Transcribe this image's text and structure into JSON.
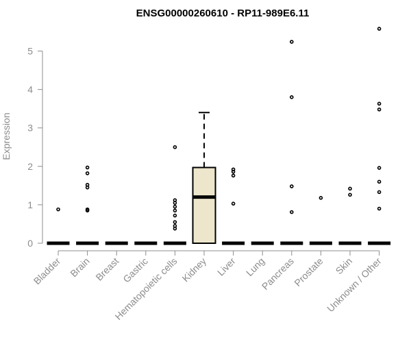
{
  "chart_data": {
    "type": "box",
    "title": "ENSG00000260610 - RP11-989E6.11",
    "xlabel": "",
    "ylabel": "Expression",
    "ylim": [
      0,
      5.6
    ],
    "yticks": [
      0,
      1,
      2,
      3,
      4,
      5
    ],
    "grid": false,
    "box_fill": "#ede6cc",
    "categories": [
      "Bladder",
      "Brain",
      "Breast",
      "Gastric",
      "Hematopoietic cells",
      "Kidney",
      "Liver",
      "Lung",
      "Pancreas",
      "Prostate",
      "Skin",
      "Unknown / Other"
    ],
    "boxes": [
      {
        "q1": 0,
        "median": 0,
        "q3": 0,
        "whisker_low": 0,
        "whisker_high": 0,
        "outliers": [
          0.88
        ]
      },
      {
        "q1": 0,
        "median": 0,
        "q3": 0,
        "whisker_low": 0,
        "whisker_high": 0,
        "outliers": [
          0.85,
          0.88,
          1.45,
          1.52,
          1.82,
          1.97
        ]
      },
      {
        "q1": 0,
        "median": 0,
        "q3": 0,
        "whisker_low": 0,
        "whisker_high": 0,
        "outliers": []
      },
      {
        "q1": 0,
        "median": 0,
        "q3": 0,
        "whisker_low": 0,
        "whisker_high": 0,
        "outliers": []
      },
      {
        "q1": 0,
        "median": 0,
        "q3": 0,
        "whisker_low": 0,
        "whisker_high": 0,
        "outliers": [
          0.38,
          0.45,
          0.55,
          0.72,
          0.85,
          0.95,
          1.05,
          1.12,
          2.5
        ]
      },
      {
        "q1": 0,
        "median": 1.2,
        "q3": 1.97,
        "whisker_low": 0,
        "whisker_high": 3.4,
        "outliers": []
      },
      {
        "q1": 0,
        "median": 0,
        "q3": 0,
        "whisker_low": 0,
        "whisker_high": 0,
        "outliers": [
          1.03,
          1.76,
          1.86,
          1.92
        ]
      },
      {
        "q1": 0,
        "median": 0,
        "q3": 0,
        "whisker_low": 0,
        "whisker_high": 0,
        "outliers": []
      },
      {
        "q1": 0,
        "median": 0,
        "q3": 0,
        "whisker_low": 0,
        "whisker_high": 0,
        "outliers": [
          0.81,
          1.48,
          3.8,
          5.24
        ]
      },
      {
        "q1": 0,
        "median": 0,
        "q3": 0,
        "whisker_low": 0,
        "whisker_high": 0,
        "outliers": [
          1.18
        ]
      },
      {
        "q1": 0,
        "median": 0,
        "q3": 0,
        "whisker_low": 0,
        "whisker_high": 0,
        "outliers": [
          1.26,
          1.42
        ]
      },
      {
        "q1": 0,
        "median": 0,
        "q3": 0,
        "whisker_low": 0,
        "whisker_high": 0,
        "outliers": [
          0.9,
          1.33,
          1.6,
          1.96,
          3.48,
          3.63,
          5.58
        ]
      }
    ]
  }
}
